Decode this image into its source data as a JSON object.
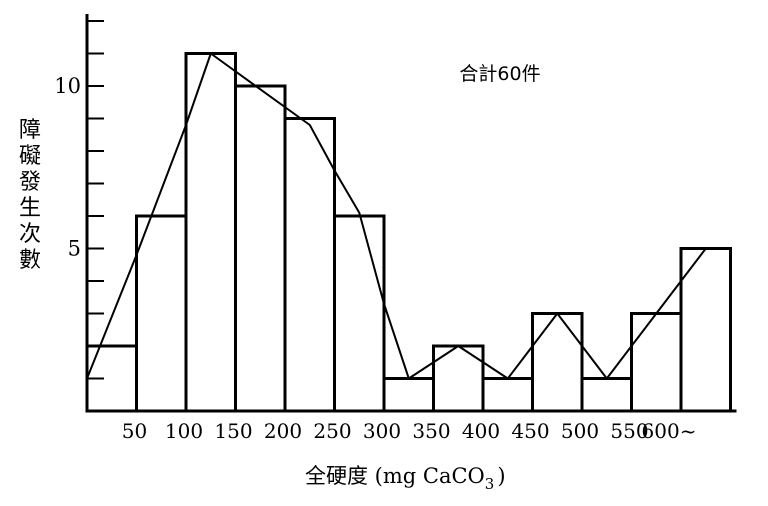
{
  "chart_data": {
    "type": "bar",
    "title": "合計60件",
    "xlabel": "全硬度 (mg CaCO3)",
    "xlabel_parts": {
      "main": "全硬度 (mg CaCO",
      "sub": "3",
      "close": ")"
    },
    "ylabel": "障礙發生次數",
    "x_tick_labels": [
      "50",
      "100",
      "150",
      "200",
      "250",
      "300",
      "350",
      "400",
      "450",
      "500",
      "550",
      "600~"
    ],
    "y_tick_labels": [
      "5",
      "10"
    ],
    "ylim": [
      0,
      12.5
    ],
    "bins": [
      {
        "from": 0,
        "to": 50,
        "value": 2
      },
      {
        "from": 50,
        "to": 100,
        "value": 6
      },
      {
        "from": 100,
        "to": 150,
        "value": 11
      },
      {
        "from": 150,
        "to": 200,
        "value": 10
      },
      {
        "from": 200,
        "to": 250,
        "value": 9
      },
      {
        "from": 250,
        "to": 300,
        "value": 6
      },
      {
        "from": 300,
        "to": 350,
        "value": 1
      },
      {
        "from": 350,
        "to": 400,
        "value": 2
      },
      {
        "from": 400,
        "to": 450,
        "value": 1
      },
      {
        "from": 450,
        "to": 500,
        "value": 3
      },
      {
        "from": 500,
        "to": 550,
        "value": 1
      },
      {
        "from": 550,
        "to": 600,
        "value": 3
      },
      {
        "from": 600,
        "to": 650,
        "value": 5
      }
    ],
    "frequency_curve": [
      {
        "x": 0,
        "y": 1.0
      },
      {
        "x": 50,
        "y": 4.8
      },
      {
        "x": 100,
        "y": 8.8
      },
      {
        "x": 125,
        "y": 11
      },
      {
        "x": 175,
        "y": 9.9
      },
      {
        "x": 225,
        "y": 8.8
      },
      {
        "x": 250,
        "y": 7.4
      },
      {
        "x": 275,
        "y": 6.1
      },
      {
        "x": 300,
        "y": 3.3
      },
      {
        "x": 325,
        "y": 1.0
      },
      {
        "x": 375,
        "y": 2.0
      },
      {
        "x": 425,
        "y": 1.0
      },
      {
        "x": 475,
        "y": 3.0
      },
      {
        "x": 525,
        "y": 1.0
      },
      {
        "x": 575,
        "y": 3.0
      },
      {
        "x": 625,
        "y": 5.0
      }
    ],
    "grid": false,
    "legend": "none",
    "colors": {
      "bar_fill": "#ffffff",
      "stroke": "#000000"
    }
  }
}
